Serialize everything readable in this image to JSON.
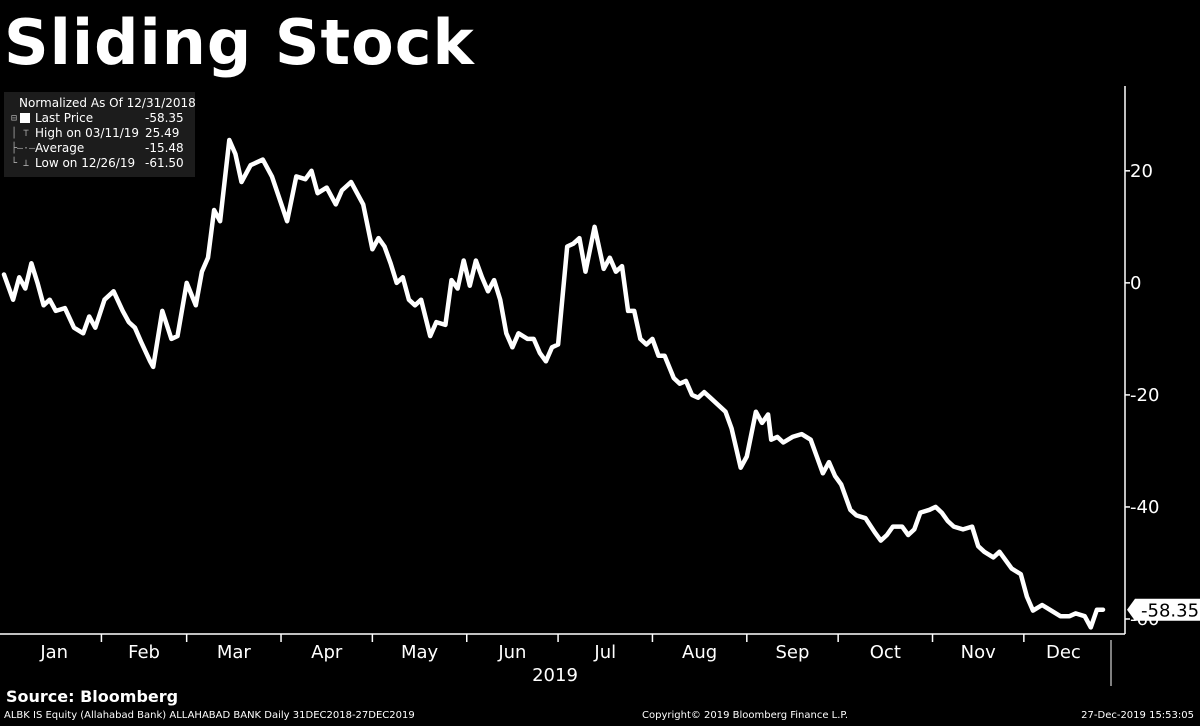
{
  "chart_data": {
    "type": "line",
    "title": "Sliding Stock",
    "xlabel": "2019",
    "ylabel": "",
    "x_tick_labels": [
      "Jan",
      "Feb",
      "Mar",
      "Apr",
      "May",
      "Jun",
      "Jul",
      "Aug",
      "Sep",
      "Oct",
      "Nov",
      "Dec"
    ],
    "y_ticks": [
      20,
      0,
      -20,
      -40,
      -60
    ],
    "y_tick_labels": [
      "20",
      "0",
      "-20",
      "-40",
      "-60"
    ],
    "ylim": [
      -65,
      33
    ],
    "x_range": [
      "2018-12-31",
      "2019-12-27"
    ],
    "grid": false,
    "legend_position": "top-left",
    "line_color": "#ffffff",
    "last_value_label": "-58.35",
    "series": [
      {
        "name": "Last Price",
        "points": [
          [
            "2018-12-31",
            1.5
          ],
          [
            "2019-01-03",
            -3
          ],
          [
            "2019-01-05",
            1
          ],
          [
            "2019-01-07",
            -1
          ],
          [
            "2019-01-09",
            3.5
          ],
          [
            "2019-01-11",
            0
          ],
          [
            "2019-01-13",
            -4
          ],
          [
            "2019-01-15",
            -3
          ],
          [
            "2019-01-17",
            -5
          ],
          [
            "2019-01-20",
            -4.5
          ],
          [
            "2019-01-23",
            -8
          ],
          [
            "2019-01-26",
            -9
          ],
          [
            "2019-01-28",
            -6
          ],
          [
            "2019-01-30",
            -8
          ],
          [
            "2019-02-02",
            -3
          ],
          [
            "2019-02-05",
            -1.5
          ],
          [
            "2019-02-08",
            -5
          ],
          [
            "2019-02-10",
            -7
          ],
          [
            "2019-02-12",
            -8
          ],
          [
            "2019-02-14",
            -10.5
          ],
          [
            "2019-02-17",
            -14
          ],
          [
            "2019-02-18",
            -15
          ],
          [
            "2019-02-21",
            -5
          ],
          [
            "2019-02-24",
            -10
          ],
          [
            "2019-02-26",
            -9.5
          ],
          [
            "2019-03-01",
            0
          ],
          [
            "2019-03-04",
            -4
          ],
          [
            "2019-03-06",
            2
          ],
          [
            "2019-03-08",
            4.5
          ],
          [
            "2019-03-10",
            13
          ],
          [
            "2019-03-12",
            11
          ],
          [
            "2019-03-15",
            25.5
          ],
          [
            "2019-03-17",
            23
          ],
          [
            "2019-03-19",
            18
          ],
          [
            "2019-03-22",
            21
          ],
          [
            "2019-03-26",
            22
          ],
          [
            "2019-03-29",
            19
          ],
          [
            "2019-04-03",
            11
          ],
          [
            "2019-04-06",
            19
          ],
          [
            "2019-04-09",
            18.5
          ],
          [
            "2019-04-11",
            20
          ],
          [
            "2019-04-13",
            16
          ],
          [
            "2019-04-16",
            17
          ],
          [
            "2019-04-19",
            14
          ],
          [
            "2019-04-21",
            16.5
          ],
          [
            "2019-04-24",
            18
          ],
          [
            "2019-04-26",
            16
          ],
          [
            "2019-04-28",
            14
          ],
          [
            "2019-05-01",
            6
          ],
          [
            "2019-05-03",
            8
          ],
          [
            "2019-05-05",
            6.5
          ],
          [
            "2019-05-07",
            3.5
          ],
          [
            "2019-05-09",
            0
          ],
          [
            "2019-05-11",
            1
          ],
          [
            "2019-05-13",
            -3
          ],
          [
            "2019-05-15",
            -4
          ],
          [
            "2019-05-17",
            -3
          ],
          [
            "2019-05-20",
            -9.5
          ],
          [
            "2019-05-22",
            -7
          ],
          [
            "2019-05-25",
            -7.5
          ],
          [
            "2019-05-27",
            0.5
          ],
          [
            "2019-05-29",
            -1
          ],
          [
            "2019-05-31",
            4
          ],
          [
            "2019-06-02",
            -0.5
          ],
          [
            "2019-06-04",
            4
          ],
          [
            "2019-06-06",
            1
          ],
          [
            "2019-06-08",
            -1.5
          ],
          [
            "2019-06-10",
            0.5
          ],
          [
            "2019-06-12",
            -3
          ],
          [
            "2019-06-14",
            -9
          ],
          [
            "2019-06-16",
            -11.5
          ],
          [
            "2019-06-18",
            -9
          ],
          [
            "2019-06-21",
            -10
          ],
          [
            "2019-06-23",
            -10
          ],
          [
            "2019-06-25",
            -12.5
          ],
          [
            "2019-06-27",
            -14
          ],
          [
            "2019-06-29",
            -11.5
          ],
          [
            "2019-07-01",
            -11
          ],
          [
            "2019-07-04",
            6.5
          ],
          [
            "2019-07-06",
            7
          ],
          [
            "2019-07-08",
            8
          ],
          [
            "2019-07-10",
            2
          ],
          [
            "2019-07-13",
            10
          ],
          [
            "2019-07-16",
            2.5
          ],
          [
            "2019-07-18",
            4.5
          ],
          [
            "2019-07-20",
            2
          ],
          [
            "2019-07-22",
            3
          ],
          [
            "2019-07-24",
            -5
          ],
          [
            "2019-07-26",
            -5
          ],
          [
            "2019-07-28",
            -10
          ],
          [
            "2019-07-30",
            -11
          ],
          [
            "2019-08-01",
            -10
          ],
          [
            "2019-08-03",
            -13
          ],
          [
            "2019-08-05",
            -13
          ],
          [
            "2019-08-08",
            -17
          ],
          [
            "2019-08-10",
            -18
          ],
          [
            "2019-08-12",
            -17.5
          ],
          [
            "2019-08-14",
            -20
          ],
          [
            "2019-08-16",
            -20.5
          ],
          [
            "2019-08-18",
            -19.5
          ],
          [
            "2019-08-20",
            -20.5
          ],
          [
            "2019-08-22",
            -21.5
          ],
          [
            "2019-08-25",
            -23
          ],
          [
            "2019-08-27",
            -26
          ],
          [
            "2019-08-30",
            -33
          ],
          [
            "2019-09-01",
            -31
          ],
          [
            "2019-09-04",
            -23
          ],
          [
            "2019-09-06",
            -25
          ],
          [
            "2019-09-08",
            -23.5
          ],
          [
            "2019-09-09",
            -28
          ],
          [
            "2019-09-11",
            -27.5
          ],
          [
            "2019-09-13",
            -28.5
          ],
          [
            "2019-09-16",
            -27.5
          ],
          [
            "2019-09-19",
            -27
          ],
          [
            "2019-09-22",
            -28
          ],
          [
            "2019-09-24",
            -31
          ],
          [
            "2019-09-26",
            -34
          ],
          [
            "2019-09-28",
            -32
          ],
          [
            "2019-09-30",
            -34.5
          ],
          [
            "2019-10-02",
            -36
          ],
          [
            "2019-10-05",
            -40.5
          ],
          [
            "2019-10-07",
            -41.5
          ],
          [
            "2019-10-10",
            -42
          ],
          [
            "2019-10-13",
            -44.5
          ],
          [
            "2019-10-15",
            -46
          ],
          [
            "2019-10-17",
            -45
          ],
          [
            "2019-10-19",
            -43.5
          ],
          [
            "2019-10-22",
            -43.5
          ],
          [
            "2019-10-24",
            -45
          ],
          [
            "2019-10-26",
            -44
          ],
          [
            "2019-10-28",
            -41
          ],
          [
            "2019-10-31",
            -40.5
          ],
          [
            "2019-11-02",
            -40
          ],
          [
            "2019-11-04",
            -41
          ],
          [
            "2019-11-06",
            -42.5
          ],
          [
            "2019-11-08",
            -43.5
          ],
          [
            "2019-11-11",
            -44
          ],
          [
            "2019-11-14",
            -43.5
          ],
          [
            "2019-11-16",
            -47
          ],
          [
            "2019-11-18",
            -48
          ],
          [
            "2019-11-21",
            -49
          ],
          [
            "2019-11-23",
            -48
          ],
          [
            "2019-11-25",
            -49.5
          ],
          [
            "2019-11-27",
            -51
          ],
          [
            "2019-11-30",
            -52
          ],
          [
            "2019-12-02",
            -56
          ],
          [
            "2019-12-04",
            -58.5
          ],
          [
            "2019-12-07",
            -57.5
          ],
          [
            "2019-12-10",
            -58.5
          ],
          [
            "2019-12-13",
            -59.5
          ],
          [
            "2019-12-16",
            -59.5
          ],
          [
            "2019-12-18",
            -59
          ],
          [
            "2019-12-21",
            -59.5
          ],
          [
            "2019-12-23",
            -61.5
          ],
          [
            "2019-12-25",
            -58.35
          ],
          [
            "2019-12-27",
            -58.35
          ]
        ]
      }
    ]
  },
  "legend": {
    "header": "Normalized As Of 12/31/2018",
    "rows": [
      {
        "label": "Last Price",
        "value": "-58.35"
      },
      {
        "label": "High on 03/11/19",
        "value": "25.49"
      },
      {
        "label": "Average",
        "value": "-15.48"
      },
      {
        "label": "Low on 12/26/19",
        "value": "-61.50"
      }
    ]
  },
  "footer": {
    "source": "Source: Bloomberg",
    "left": "ALBK IS Equity (Allahabad Bank) ALLAHABAD BANK   Daily 31DEC2018-27DEC2019",
    "middle": "Copyright© 2019 Bloomberg Finance L.P.",
    "right": "27-Dec-2019 15:53:05"
  }
}
